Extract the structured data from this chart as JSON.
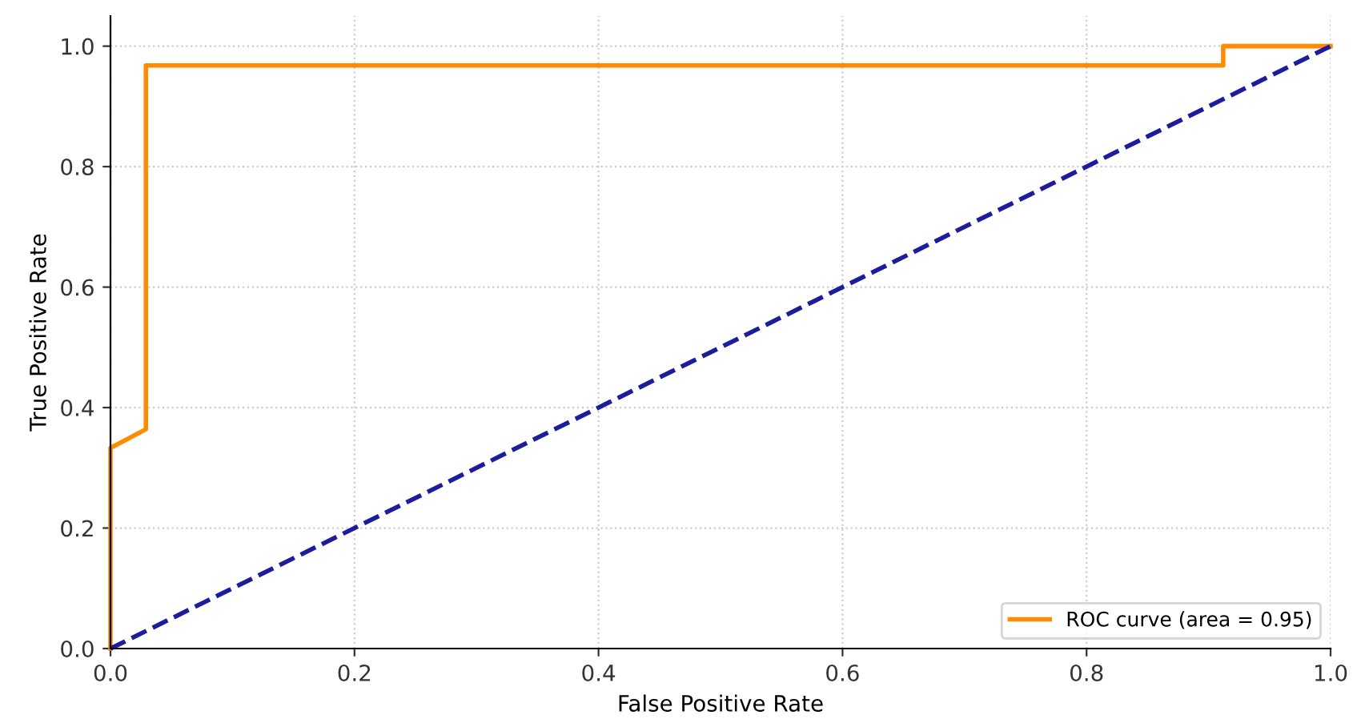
{
  "chart_data": {
    "type": "line",
    "xlabel": "False Positive Rate",
    "ylabel": "True Positive Rate",
    "xlim": [
      0,
      1.0
    ],
    "ylim": [
      0,
      1.05
    ],
    "xticks": [
      {
        "value": 0,
        "label": "0.0"
      },
      0.2,
      0.4,
      0.6,
      0.8,
      {
        "value": 1,
        "label": "1.0"
      }
    ],
    "yticks": [
      {
        "value": 0,
        "label": "0.0"
      },
      0.2,
      0.4,
      0.6,
      0.8,
      {
        "value": 1,
        "label": "1.0"
      }
    ],
    "grid": true,
    "legend": "bottom right",
    "series": [
      {
        "name": "ROC curve (area = 0.95)",
        "color": "#ff8c00",
        "line_style": "solid",
        "x": [
          0,
          0,
          0.029,
          0.029,
          0.912,
          0.912,
          1
        ],
        "values": [
          0,
          0.333,
          0.364,
          0.968,
          0.968,
          1,
          1
        ]
      },
      {
        "color": "#1c1c9c",
        "line_style": "dashed",
        "x": [
          0,
          1
        ],
        "values": [
          0,
          1
        ]
      }
    ]
  }
}
